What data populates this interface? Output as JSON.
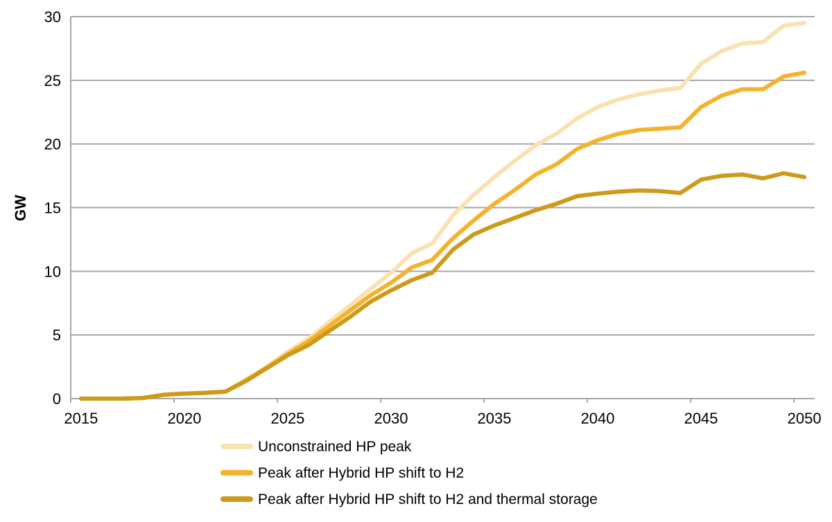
{
  "chart_data": {
    "type": "line",
    "title": "",
    "xlabel": "",
    "ylabel": "GW",
    "grid": "horizontal",
    "legend_position": "bottom-left",
    "axis_color": "#A6A6A6",
    "text_color": "#000000",
    "background_color": "#FFFFFF",
    "ylim": [
      0,
      30
    ],
    "xlim": [
      2014.5,
      2050.5
    ],
    "y_ticks": [
      0,
      5,
      10,
      15,
      20,
      25,
      30
    ],
    "x_tick_labels": [
      "2015",
      "2020",
      "2025",
      "2030",
      "2035",
      "2040",
      "2045",
      "2050"
    ],
    "x_tick_label_years": [
      2015,
      2020,
      2025,
      2030,
      2035,
      2040,
      2045,
      2050
    ],
    "x": [
      2015,
      2016,
      2017,
      2018,
      2019,
      2020,
      2021,
      2022,
      2023,
      2024,
      2025,
      2026,
      2027,
      2028,
      2029,
      2030,
      2031,
      2032,
      2033,
      2034,
      2035,
      2036,
      2037,
      2038,
      2039,
      2040,
      2041,
      2042,
      2043,
      2044,
      2045,
      2046,
      2047,
      2048,
      2049,
      2050
    ],
    "series": [
      {
        "name": "Unconstrained HP peak",
        "color": "#FAE1B1",
        "values": [
          0,
          0,
          0,
          0.05,
          0.3,
          0.4,
          0.45,
          0.55,
          1.5,
          2.5,
          3.7,
          4.7,
          6.0,
          7.3,
          8.6,
          9.9,
          11.4,
          12.2,
          14.4,
          16.0,
          17.4,
          18.7,
          19.9,
          20.8,
          22.0,
          22.9,
          23.5,
          23.9,
          24.2,
          24.4,
          26.3,
          27.3,
          27.9,
          28.0,
          29.3,
          29.5
        ]
      },
      {
        "name": "Peak after Hybrid HP shift to H2",
        "color": "#F4B32C",
        "values": [
          0,
          0,
          0,
          0.05,
          0.3,
          0.4,
          0.45,
          0.55,
          1.45,
          2.45,
          3.5,
          4.5,
          5.7,
          6.9,
          8.1,
          9.1,
          10.3,
          10.9,
          12.6,
          14.0,
          15.3,
          16.4,
          17.6,
          18.4,
          19.6,
          20.3,
          20.8,
          21.1,
          21.2,
          21.3,
          22.9,
          23.8,
          24.3,
          24.3,
          25.3,
          25.6
        ]
      },
      {
        "name": "Peak after Hybrid HP shift to H2 and thermal storage",
        "color": "#CE9A1B",
        "values": [
          0,
          0,
          0,
          0.05,
          0.3,
          0.4,
          0.45,
          0.55,
          1.4,
          2.4,
          3.4,
          4.2,
          5.3,
          6.4,
          7.6,
          8.5,
          9.3,
          9.9,
          11.7,
          12.9,
          13.6,
          14.2,
          14.8,
          15.3,
          15.9,
          16.1,
          16.25,
          16.35,
          16.3,
          16.15,
          17.2,
          17.5,
          17.6,
          17.3,
          17.7,
          17.4
        ]
      }
    ]
  }
}
